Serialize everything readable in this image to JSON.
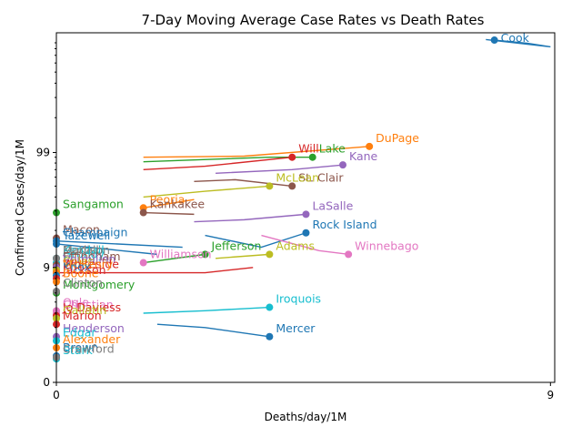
{
  "chart_data": {
    "type": "scatter",
    "title": "7-Day Moving Average Case Rates vs Death Rates",
    "xlabel": "Deaths/day/1M",
    "ylabel": "Confirmed Cases/day/1M",
    "x_scale": "symlog",
    "y_scale": "symlog",
    "xlim": [
      0,
      9.2
    ],
    "ylim": [
      0,
      1100
    ],
    "x_ticks": [
      {
        "value": 0,
        "label": "0"
      },
      {
        "value": 9,
        "label": "9"
      }
    ],
    "y_ticks": [
      {
        "value": 0,
        "label": "0"
      },
      {
        "value": 9,
        "label": "9"
      },
      {
        "value": 99,
        "label": "99"
      }
    ],
    "grid": false,
    "legend": "none",
    "series": [
      {
        "name": "Cook",
        "color": "#1f77b4",
        "x": 6.7,
        "y": 950,
        "trail": [
          [
            6.7,
            950
          ],
          [
            8.0,
            890
          ],
          [
            9.0,
            830
          ],
          [
            6.4,
            960
          ]
        ]
      },
      {
        "name": "DuPage",
        "color": "#ff7f0e",
        "x": 3.3,
        "y": 112,
        "trail": [
          [
            3.3,
            112
          ],
          [
            1.4,
            92
          ],
          [
            0.5,
            90
          ]
        ]
      },
      {
        "name": "Lake",
        "color": "#2ca02c",
        "x": 2.3,
        "y": 90,
        "trail": [
          [
            2.3,
            90
          ],
          [
            1.7,
            90
          ],
          [
            0.5,
            82
          ]
        ]
      },
      {
        "name": "Will",
        "color": "#d62728",
        "x": 2.0,
        "y": 90,
        "trail": [
          [
            2.0,
            90
          ],
          [
            1.0,
            75
          ],
          [
            0.5,
            70
          ]
        ]
      },
      {
        "name": "Kane",
        "color": "#9467bd",
        "x": 2.8,
        "y": 77,
        "trail": [
          [
            2.8,
            77
          ],
          [
            2.0,
            70
          ],
          [
            1.1,
            65
          ]
        ]
      },
      {
        "name": "St. Clair",
        "color": "#8c564b",
        "x": 2.0,
        "y": 50,
        "trail": [
          [
            2.0,
            50
          ],
          [
            1.3,
            57
          ],
          [
            0.9,
            55
          ]
        ]
      },
      {
        "name": "McLean",
        "color": "#bcbd22",
        "x": 1.7,
        "y": 50,
        "trail": [
          [
            1.7,
            50
          ],
          [
            1.0,
            45
          ],
          [
            0.5,
            40
          ]
        ]
      },
      {
        "name": "LaSalle",
        "color": "#9467bd",
        "x": 2.2,
        "y": 28,
        "trail": [
          [
            2.2,
            28
          ],
          [
            1.4,
            25
          ],
          [
            0.9,
            24
          ]
        ]
      },
      {
        "name": "Rock Island",
        "color": "#1f77b4",
        "x": 2.2,
        "y": 19,
        "trail": [
          [
            2.2,
            19
          ],
          [
            1.6,
            14
          ],
          [
            1.0,
            18
          ]
        ]
      },
      {
        "name": "Winnebago",
        "color": "#e377c2",
        "x": 2.9,
        "y": 12,
        "trail": [
          [
            2.9,
            12
          ],
          [
            2.4,
            13
          ],
          [
            1.6,
            18
          ]
        ]
      },
      {
        "name": "Sangamon",
        "color": "#2ca02c",
        "x": 0.0,
        "y": 29,
        "trail": [
          [
            0.0,
            29
          ]
        ]
      },
      {
        "name": "Peoria",
        "color": "#ff7f0e",
        "x": 0.5,
        "y": 32,
        "trail": [
          [
            0.5,
            32
          ],
          [
            0.9,
            38
          ]
        ]
      },
      {
        "name": "Kankakee",
        "color": "#8c564b",
        "x": 0.5,
        "y": 29,
        "trail": [
          [
            0.5,
            29
          ],
          [
            0.9,
            28
          ]
        ]
      },
      {
        "name": "Macon",
        "color": "#8c564b",
        "x": 0.0,
        "y": 17,
        "trail": [
          [
            0.0,
            17
          ]
        ]
      },
      {
        "name": "Champaign",
        "color": "#1f77b4",
        "x": 0.0,
        "y": 16,
        "trail": [
          [
            0.0,
            16
          ],
          [
            0.8,
            14
          ]
        ]
      },
      {
        "name": "Tazewell",
        "color": "#1f77b4",
        "x": 0.0,
        "y": 15,
        "trail": [
          [
            0.0,
            15
          ],
          [
            0.6,
            12
          ]
        ]
      },
      {
        "name": "DeKalb",
        "color": "#7f7f7f",
        "x": 0.0,
        "y": 11,
        "trail": [
          [
            0.0,
            11
          ]
        ]
      },
      {
        "name": "Jefferson",
        "color": "#2ca02c",
        "x": 1.0,
        "y": 12,
        "trail": [
          [
            1.0,
            12
          ],
          [
            0.5,
            10
          ]
        ]
      },
      {
        "name": "Adams",
        "color": "#bcbd22",
        "x": 1.7,
        "y": 12,
        "trail": [
          [
            1.7,
            12
          ],
          [
            1.1,
            11
          ]
        ]
      },
      {
        "name": "Kendall",
        "color": "#17becf",
        "x": 0.0,
        "y": 11,
        "trail": [
          [
            0.0,
            11
          ]
        ]
      },
      {
        "name": "Williamson",
        "color": "#e377c2",
        "x": 0.5,
        "y": 10,
        "trail": [
          [
            0.5,
            10
          ]
        ]
      },
      {
        "name": "Grundy",
        "color": "#17becf",
        "x": 0.0,
        "y": 10,
        "trail": [
          [
            0.0,
            10
          ]
        ]
      },
      {
        "name": "Madison",
        "color": "#7f7f7f",
        "x": 0.0,
        "y": 11,
        "trail": [
          [
            0.0,
            11
          ]
        ]
      },
      {
        "name": "Effingham",
        "color": "#8c564b",
        "x": 0.0,
        "y": 9.5,
        "trail": [
          [
            0.0,
            9.5
          ]
        ]
      },
      {
        "name": "Vermilion",
        "color": "#9467bd",
        "x": 0.0,
        "y": 9,
        "trail": [
          [
            0.0,
            9
          ]
        ]
      },
      {
        "name": "Coles",
        "color": "#bcbd22",
        "x": 0.0,
        "y": 8.5,
        "trail": [
          [
            0.0,
            8.5
          ]
        ]
      },
      {
        "name": "Whiteside",
        "color": "#d62728",
        "x": 0.0,
        "y": 8,
        "trail": [
          [
            0.0,
            8
          ],
          [
            1.0,
            8
          ],
          [
            1.5,
            9
          ]
        ]
      },
      {
        "name": "McHenry",
        "color": "#ff7f0e",
        "x": 0.0,
        "y": 8,
        "trail": [
          [
            0.0,
            8
          ]
        ]
      },
      {
        "name": "Knox",
        "color": "#1f77b4",
        "x": 0.0,
        "y": 7.5,
        "trail": [
          [
            0.0,
            7.5
          ]
        ]
      },
      {
        "name": "Jackson",
        "color": "#d62728",
        "x": 0.0,
        "y": 7,
        "trail": [
          [
            0.0,
            7
          ]
        ]
      },
      {
        "name": "Boone",
        "color": "#ff7f0e",
        "x": 0.0,
        "y": 6.5,
        "trail": [
          [
            0.0,
            6.5
          ]
        ]
      },
      {
        "name": "Montgomery",
        "color": "#2ca02c",
        "x": 0.0,
        "y": 5,
        "trail": [
          [
            0.0,
            5
          ]
        ]
      },
      {
        "name": "Clinton",
        "color": "#7f7f7f",
        "x": 0.0,
        "y": 5.2,
        "trail": [
          [
            0.0,
            5.2
          ]
        ]
      },
      {
        "name": "Iroquois",
        "color": "#17becf",
        "x": 1.7,
        "y": 3.5,
        "trail": [
          [
            1.7,
            3.5
          ],
          [
            1.0,
            3.2
          ],
          [
            0.5,
            3.0
          ]
        ]
      },
      {
        "name": "Ogle",
        "color": "#e377c2",
        "x": 0.0,
        "y": 3.2,
        "trail": [
          [
            0.0,
            3.2
          ]
        ]
      },
      {
        "name": "Christian",
        "color": "#e377c2",
        "x": 0.0,
        "y": 3.0,
        "trail": [
          [
            0.0,
            3.0
          ]
        ]
      },
      {
        "name": "Jo Daviess",
        "color": "#d62728",
        "x": 0.0,
        "y": 2.8,
        "trail": [
          [
            0.0,
            2.8
          ]
        ]
      },
      {
        "name": "Gallatin",
        "color": "#bcbd22",
        "x": 0.0,
        "y": 2.6,
        "trail": [
          [
            0.0,
            2.6
          ]
        ]
      },
      {
        "name": "Mercer",
        "color": "#1f77b4",
        "x": 1.7,
        "y": 1.5,
        "trail": [
          [
            1.7,
            1.5
          ],
          [
            1.0,
            2.0
          ],
          [
            0.6,
            2.2
          ]
        ]
      },
      {
        "name": "Marion",
        "color": "#d62728",
        "x": 0.0,
        "y": 2.2,
        "trail": [
          [
            0.0,
            2.2
          ]
        ]
      },
      {
        "name": "Henderson",
        "color": "#9467bd",
        "x": 0.0,
        "y": 1.5,
        "trail": [
          [
            0.0,
            1.5
          ]
        ]
      },
      {
        "name": "Edgar",
        "color": "#17becf",
        "x": 0.0,
        "y": 1.3,
        "trail": [
          [
            0.0,
            1.3
          ]
        ]
      },
      {
        "name": "Alexander",
        "color": "#ff7f0e",
        "x": 0.0,
        "y": 1.0,
        "trail": [
          [
            0.0,
            1.0
          ]
        ]
      },
      {
        "name": "Brown",
        "color": "#1f77b4",
        "x": 0.0,
        "y": 0.7,
        "trail": [
          [
            0.0,
            0.7
          ]
        ]
      },
      {
        "name": "Stark",
        "color": "#17becf",
        "x": 0.0,
        "y": 0.6,
        "trail": [
          [
            0.0,
            0.6
          ]
        ]
      },
      {
        "name": "Crawford",
        "color": "#7f7f7f",
        "x": 0.0,
        "y": 0.65,
        "trail": [
          [
            0.0,
            0.65
          ]
        ]
      }
    ]
  }
}
